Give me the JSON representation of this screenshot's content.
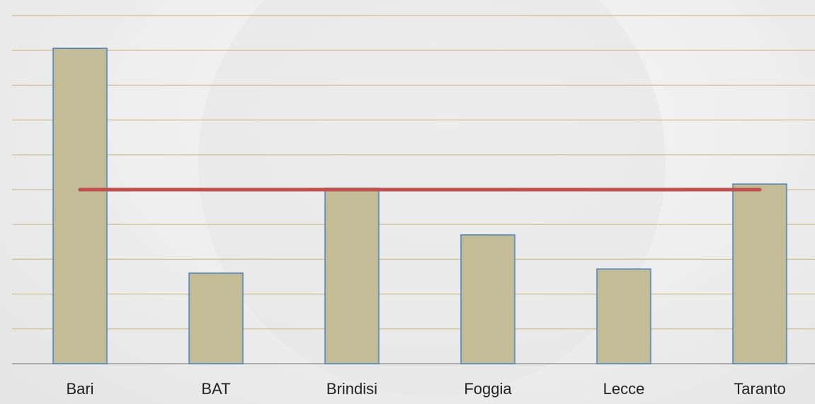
{
  "chart_data": {
    "type": "bar",
    "categories": [
      "Bari",
      "BAT",
      "Brindisi",
      "Foggia",
      "Lecce",
      "Taranto"
    ],
    "values": [
      9.06,
      2.6,
      5.04,
      3.7,
      2.72,
      5.16
    ],
    "color": "#c4bc96",
    "edge_color": "#4f81bd",
    "ylim": [
      0,
      10
    ],
    "yticks": [
      0,
      1,
      2,
      3,
      4,
      5,
      6,
      7,
      8,
      9,
      10
    ],
    "grid": true,
    "grid_color": "#cdbf8f",
    "reference_line": {
      "value": 5.0,
      "color": "#c0504d"
    }
  }
}
